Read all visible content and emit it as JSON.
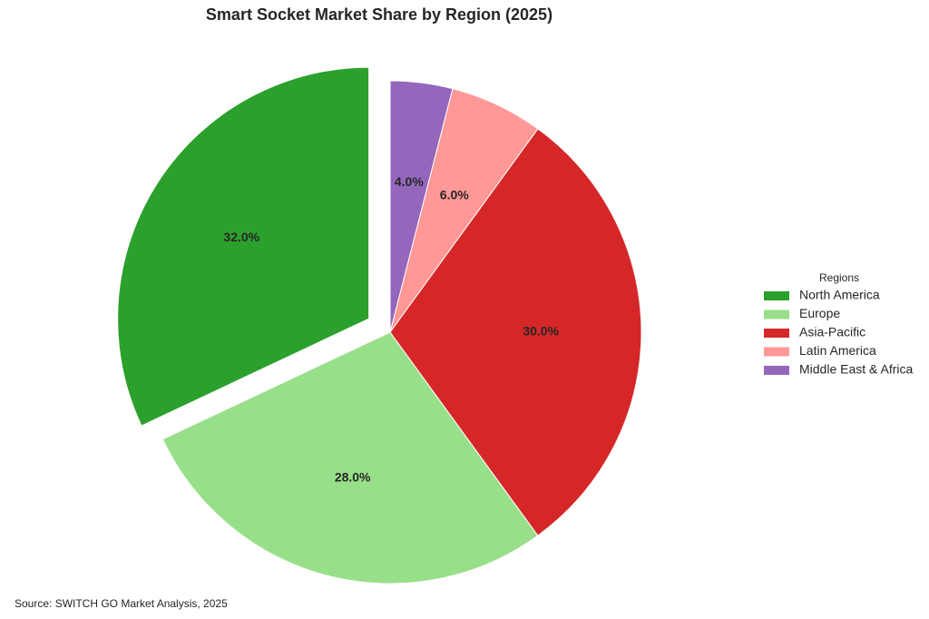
{
  "chart_data": {
    "type": "pie",
    "title": "Smart Socket Market Share by Region (2025)",
    "categories": [
      "North America",
      "Europe",
      "Asia-Pacific",
      "Latin America",
      "Middle East & Africa"
    ],
    "values": [
      32,
      28,
      30,
      6,
      4
    ],
    "value_labels": [
      "32.0%",
      "28.0%",
      "30.0%",
      "6.0%",
      "4.0%"
    ],
    "colors": [
      "#2ca02c",
      "#98df8a",
      "#d62728",
      "#ff9896",
      "#9467bd"
    ],
    "explode": [
      0.1,
      0,
      0,
      0,
      0
    ],
    "start_angle": 90,
    "counterclock": true,
    "legend_title": "Regions",
    "legend_position": "right",
    "source": "Source: SWITCH GO Market Analysis, 2025"
  }
}
